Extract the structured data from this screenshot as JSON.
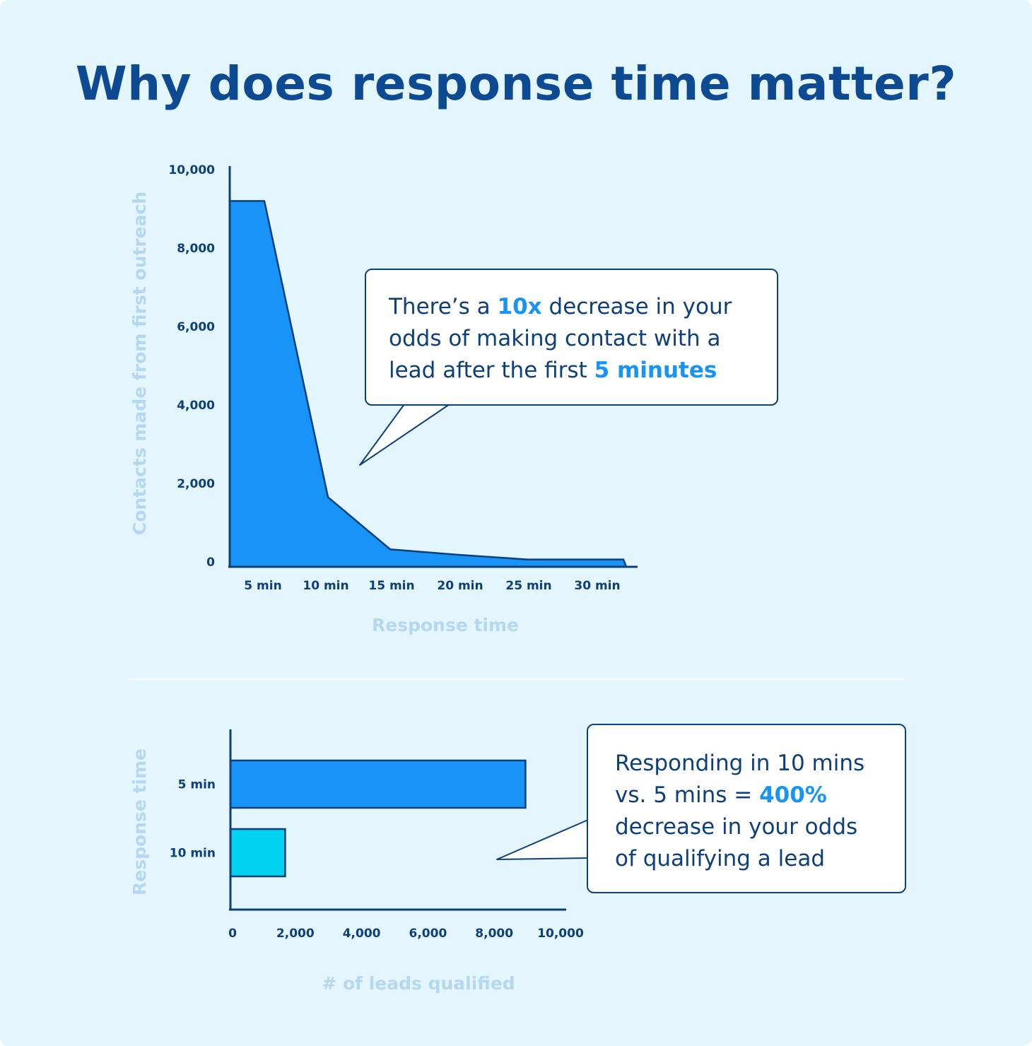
{
  "title": "Why does response time matter?",
  "colors": {
    "background": "#e3f6fd",
    "title": "#0d4a92",
    "area_fill": "#1893f7",
    "bar_5min": "#1893f7",
    "bar_10min": "#00d1ef",
    "stroke": "#0d3f7a",
    "axis_title": "#b6d7f0",
    "highlight": "#1893f7"
  },
  "callouts": {
    "first": {
      "part1": "There’s a ",
      "hl1": "10x",
      "part2": " decrease in your odds of making contact with a lead after the first ",
      "hl2": "5 minutes"
    },
    "second": {
      "part1": "Responding in 10 mins vs. 5 mins = ",
      "hl1": "400%",
      "part2": " decrease in your odds of qualifying a lead"
    }
  },
  "chart_data": [
    {
      "type": "area",
      "x": [
        "5 min",
        "10 min",
        "15 min",
        "20 min",
        "25 min",
        "30 min"
      ],
      "y": [
        9200,
        1650,
        320,
        180,
        60,
        60
      ],
      "xlabel": "Response time",
      "ylabel": "Contacts made from first outreach",
      "ylim": [
        0,
        10000
      ],
      "yticks": [
        {
          "value": 0,
          "label": "0"
        },
        {
          "value": 2000,
          "label": "2,000"
        },
        {
          "value": 4000,
          "label": "4,000"
        },
        {
          "value": 6000,
          "label": "6,000"
        },
        {
          "value": 8000,
          "label": "8,000"
        },
        {
          "value": 10000,
          "label": "10,000"
        }
      ],
      "grid": false
    },
    {
      "type": "bar",
      "orientation": "horizontal",
      "categories": [
        "5 min",
        "10 min"
      ],
      "values": [
        8900,
        1650
      ],
      "xlabel": "# of leads qualified",
      "ylabel": "Response time",
      "xlim": [
        0,
        10000
      ],
      "xticks": [
        {
          "value": 0,
          "label": "0"
        },
        {
          "value": 2000,
          "label": "2,000"
        },
        {
          "value": 4000,
          "label": "4,000"
        },
        {
          "value": 6000,
          "label": "6,000"
        },
        {
          "value": 8000,
          "label": "8,000"
        },
        {
          "value": 10000,
          "label": "10,000"
        }
      ],
      "grid": false
    }
  ]
}
